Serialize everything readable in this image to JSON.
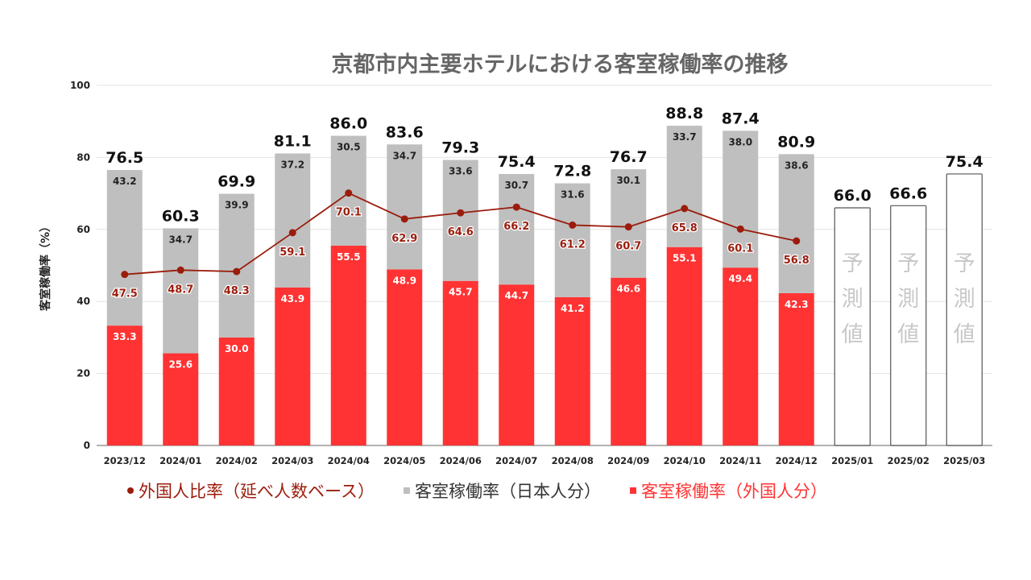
{
  "chart_data": {
    "type": "bar",
    "subtype": "stacked-bar-with-line",
    "title": "京都市内主要ホテルにおける客室稼働率の推移",
    "xlabel": "",
    "ylabel": "客室稼働率（%）",
    "ylim": [
      0,
      100
    ],
    "yticks": [
      0,
      20,
      40,
      60,
      80,
      100
    ],
    "grid": true,
    "legend_position": "bottom",
    "categories": [
      "2023/12",
      "2024/01",
      "2024/02",
      "2024/03",
      "2024/04",
      "2024/05",
      "2024/06",
      "2024/07",
      "2024/08",
      "2024/09",
      "2024/10",
      "2024/11",
      "2024/12",
      "2025/01",
      "2025/02",
      "2025/03"
    ],
    "series": [
      {
        "name": "客室稼働率（外国人分）",
        "kind": "bar-stack",
        "color": "#ff3333",
        "label_color": "#ffffff",
        "values": [
          33.3,
          25.6,
          30.0,
          43.9,
          55.5,
          48.9,
          45.7,
          44.7,
          41.2,
          46.6,
          55.1,
          49.4,
          42.3,
          null,
          null,
          null
        ]
      },
      {
        "name": "客室稼働率（日本人分）",
        "kind": "bar-stack",
        "color": "#bfbfbf",
        "label_color": "#222222",
        "values": [
          43.2,
          34.7,
          39.9,
          37.2,
          30.5,
          34.7,
          33.6,
          30.7,
          31.6,
          30.1,
          33.7,
          38.0,
          38.6,
          null,
          null,
          null
        ]
      },
      {
        "name": "外国人比率（延べ人数ベース）",
        "kind": "line",
        "color": "#9b1c0c",
        "label_color": "#9b1c0c",
        "values": [
          47.5,
          48.7,
          48.3,
          59.1,
          70.1,
          62.9,
          64.6,
          66.2,
          61.2,
          60.7,
          65.8,
          60.1,
          56.8,
          null,
          null,
          null
        ]
      }
    ],
    "totals": [
      76.5,
      60.3,
      69.9,
      81.1,
      86.0,
      83.6,
      79.3,
      75.4,
      72.8,
      76.7,
      88.8,
      87.4,
      80.9,
      66.0,
      66.6,
      75.4
    ],
    "forecast": {
      "categories": [
        "2025/01",
        "2025/02",
        "2025/03"
      ],
      "values": [
        66.0,
        66.6,
        75.4
      ],
      "label": "予測値",
      "fill": "#ffffff",
      "stroke": "#555555",
      "label_color": "#c8c8c8"
    },
    "legend": [
      {
        "label": "外国人比率（延べ人数ベース）",
        "marker": "dot",
        "color": "#9b1c0c"
      },
      {
        "label": "客室稼働率（日本人分）",
        "marker": "square",
        "color": "#bfbfbf",
        "text_color": "#333333"
      },
      {
        "label": "客室稼働率（外国人分）",
        "marker": "square",
        "color": "#ff3333"
      }
    ]
  }
}
